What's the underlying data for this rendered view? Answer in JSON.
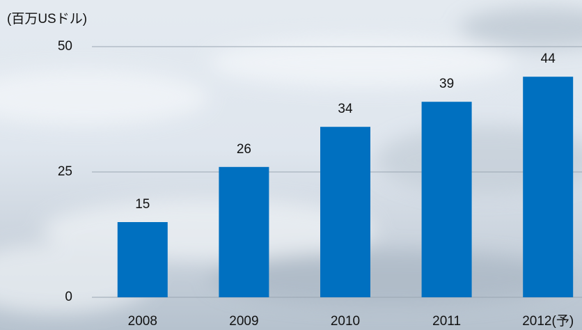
{
  "chart_data": {
    "type": "bar",
    "title": "(百万USドル)",
    "categories": [
      "2008",
      "2009",
      "2010",
      "2011",
      "2012(予)"
    ],
    "values": [
      15,
      26,
      34,
      39,
      44
    ],
    "color": "#0070c0",
    "ylim": [
      0,
      50
    ],
    "yticks": [
      0,
      25,
      50
    ],
    "grid": true
  }
}
